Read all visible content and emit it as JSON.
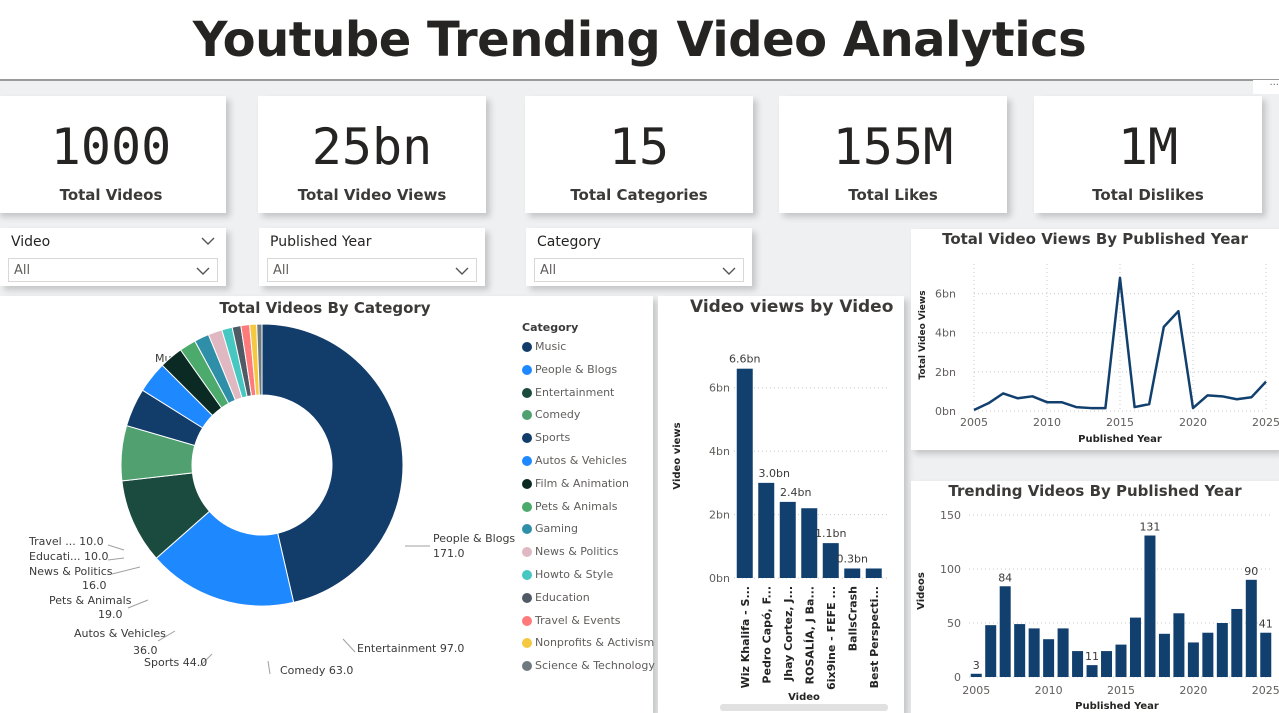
{
  "title": "Youtube Trending Video Analytics",
  "more_options_glyph": "···",
  "kpis": [
    {
      "value": "1000",
      "label": "Total Videos"
    },
    {
      "value": "25bn",
      "label": "Total Video Views"
    },
    {
      "value": "15",
      "label": "Total Categories"
    },
    {
      "value": "155M",
      "label": "Total Likes"
    },
    {
      "value": "1M",
      "label": "Total Dislikes"
    }
  ],
  "slicers": [
    {
      "title": "Video",
      "value": "All"
    },
    {
      "title": "Published Year",
      "value": "All"
    },
    {
      "title": "Category",
      "value": "All"
    }
  ],
  "colors": {
    "navy": "#12406e",
    "accent": "#1e88ff",
    "background": "#eef0f2",
    "card": "#ffffff"
  },
  "icons": {
    "slicer_collapse": "chevron-down-icon",
    "dropdown": "chevron-down-icon"
  },
  "chart_data": [
    {
      "type": "pie",
      "variant": "donut",
      "title": "Total Videos By Category",
      "legend_title": "Category",
      "legend_position": "right",
      "slices": [
        {
          "name": "Music",
          "value": 464,
          "color": "#123c6a",
          "label": "Music 464.0"
        },
        {
          "name": "People & Blogs",
          "value": 171,
          "color": "#1e88ff",
          "label": "People & Blogs 171.0"
        },
        {
          "name": "Entertainment",
          "value": 97,
          "color": "#1b4a3f",
          "label": "Entertainment 97.0"
        },
        {
          "name": "Comedy",
          "value": 63,
          "color": "#50a070",
          "label": "Comedy 63.0"
        },
        {
          "name": "Sports",
          "value": 44,
          "color": "#123c6a",
          "label": "Sports 44.0"
        },
        {
          "name": "Autos & Vehicles",
          "value": 36,
          "color": "#1e88ff",
          "label": "Autos & Vehicles 36.0"
        },
        {
          "name": "Film & Animation",
          "value": 27,
          "color": "#0b2a24",
          "label": ""
        },
        {
          "name": "Pets & Animals",
          "value": 19,
          "color": "#4caa6c",
          "label": "Pets & Animals 19.0"
        },
        {
          "name": "Gaming",
          "value": 17,
          "color": "#2f8fa8",
          "label": ""
        },
        {
          "name": "News & Politics",
          "value": 16,
          "color": "#e0b8c2",
          "label": "News & Politics 16.0"
        },
        {
          "name": "Howto & Style",
          "value": 12,
          "color": "#46c7c1",
          "label": ""
        },
        {
          "name": "Education",
          "value": 10,
          "color": "#505a64",
          "label": "Educati... 10.0"
        },
        {
          "name": "Travel & Events",
          "value": 10,
          "color": "#ff7a7a",
          "label": "Travel ... 10.0"
        },
        {
          "name": "Nonprofits & Activism",
          "value": 8,
          "color": "#f5c842",
          "label": ""
        },
        {
          "name": "Science & Technology",
          "value": 6,
          "color": "#6f7a80",
          "label": ""
        }
      ]
    },
    {
      "type": "bar",
      "title": "Video views by Video",
      "xlabel": "Video",
      "ylabel": "Video views",
      "ylim": [
        0,
        7
      ],
      "yticks": [
        "0bn",
        "2bn",
        "4bn",
        "6bn"
      ],
      "categories": [
        "Wiz Khalifa - S...",
        "Pedro Capó, F...",
        "Jhay Cortez, J...",
        "ROSALÍA, J Ba...",
        "6ix9ine - FEFE ...",
        "BallsCrash",
        "Best Perspecti..."
      ],
      "values": [
        6.6,
        3.0,
        2.4,
        2.2,
        1.1,
        0.3,
        0.3
      ],
      "data_labels": [
        "6.6bn",
        "3.0bn",
        "2.4bn",
        "",
        "1.1bn",
        "0.3bn",
        ""
      ]
    },
    {
      "type": "line",
      "title": "Total Video Views By Published Year",
      "xlabel": "Published Year",
      "ylabel": "Total Video Views",
      "xlim": [
        2005,
        2025
      ],
      "ylim": [
        0,
        7
      ],
      "xticks": [
        "2005",
        "2010",
        "2015",
        "2020",
        "2025"
      ],
      "yticks": [
        "0bn",
        "2bn",
        "4bn",
        "6bn"
      ],
      "x": [
        2005,
        2006,
        2007,
        2008,
        2009,
        2010,
        2011,
        2012,
        2013,
        2014,
        2015,
        2016,
        2017,
        2018,
        2019,
        2020,
        2021,
        2022,
        2023,
        2024,
        2025
      ],
      "values": [
        0.05,
        0.4,
        0.9,
        0.65,
        0.75,
        0.45,
        0.45,
        0.2,
        0.15,
        0.15,
        6.8,
        0.2,
        0.35,
        4.3,
        5.1,
        0.15,
        0.8,
        0.75,
        0.6,
        0.7,
        1.5
      ]
    },
    {
      "type": "bar",
      "title": "Trending Videos By Published Year",
      "xlabel": "Published Year",
      "ylabel": "Videos",
      "ylim": [
        0,
        150
      ],
      "xticks": [
        "2005",
        "2010",
        "2015",
        "2020",
        "2025"
      ],
      "yticks": [
        "0",
        "50",
        "100",
        "150"
      ],
      "categories": [
        2005,
        2006,
        2007,
        2008,
        2009,
        2010,
        2011,
        2012,
        2013,
        2014,
        2015,
        2016,
        2017,
        2018,
        2019,
        2020,
        2021,
        2022,
        2023,
        2024,
        2025
      ],
      "values": [
        3,
        48,
        84,
        49,
        45,
        35,
        45,
        24,
        11,
        24,
        30,
        55,
        131,
        40,
        59,
        32,
        41,
        50,
        63,
        90,
        41
      ],
      "data_labels": [
        "3",
        "",
        "84",
        "",
        "",
        "",
        "",
        "",
        "11",
        "",
        "",
        "",
        "131",
        "",
        "",
        "",
        "",
        "",
        "",
        "90",
        "41"
      ]
    }
  ]
}
